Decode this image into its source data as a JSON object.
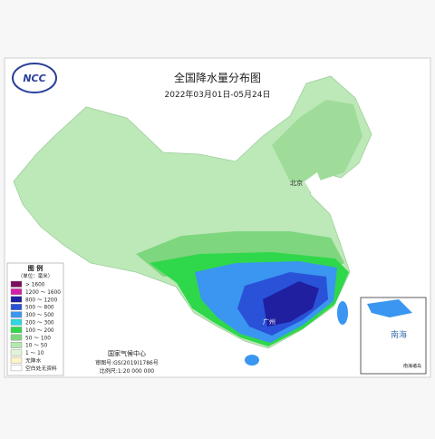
{
  "header": {
    "logo": "NCC",
    "title": "全国降水量分布图",
    "date_range": "2022年03月01日-05月24日"
  },
  "legend": {
    "title": "图 例",
    "unit": "（单位：毫米）",
    "items": [
      {
        "label": "> 1600",
        "color": "#7a0f5c"
      },
      {
        "label": "1200 ～ 1600",
        "color": "#d21fa8"
      },
      {
        "label": "800 ～ 1200",
        "color": "#1f1fa0"
      },
      {
        "label": "500 ～ 800",
        "color": "#2a52d8"
      },
      {
        "label": "300 ～ 500",
        "color": "#3a96f0"
      },
      {
        "label": "200 ～ 300",
        "color": "#2fd6e0"
      },
      {
        "label": "100 ～ 200",
        "color": "#2fd84a"
      },
      {
        "label": "50 ～ 100",
        "color": "#7ed67e"
      },
      {
        "label": "10 ～ 50",
        "color": "#b6e6b0"
      },
      {
        "label": "1 ～ 10",
        "color": "#e0f3d8"
      },
      {
        "label": "无降水",
        "color": "#fbf6c8"
      },
      {
        "label": "空白处无资料",
        "color": "#ffffff"
      }
    ]
  },
  "footer": {
    "agency": "国家气候中心",
    "review_no": "审图号:GS(2019)1786号",
    "scale": "比例尺:1:20 000 000"
  },
  "inset": {
    "label": "南海",
    "caption": "南海诸岛"
  },
  "cities": [
    "北京",
    "广州"
  ]
}
